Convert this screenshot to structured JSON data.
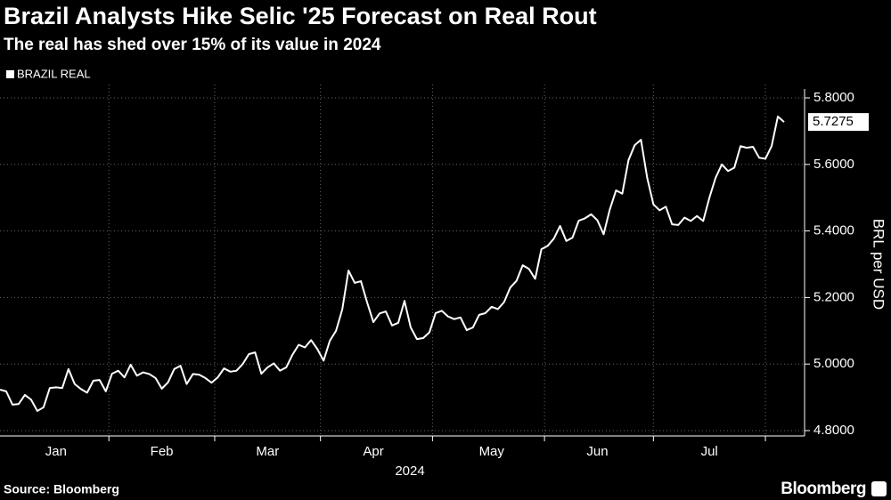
{
  "chart_data": {
    "type": "line",
    "title": "Brazil Analysts Hike Selic '25 Forecast on Real Rout",
    "subtitle": "The real has shed over 15% of its value in 2024",
    "y_label": "BRL per USD",
    "x_label": "2024",
    "source": "Source: Bloomberg",
    "brand": "Bloomberg",
    "last_label": "5.7275",
    "legend": "top-left",
    "grid": true,
    "categories": [
      null,
      null,
      null,
      null,
      null,
      null,
      null,
      null,
      null,
      "Jan",
      null,
      null,
      null,
      null,
      null,
      null,
      null,
      null,
      null,
      null,
      null,
      null,
      null,
      null,
      null,
      null,
      "Feb",
      null,
      null,
      null,
      null,
      null,
      null,
      null,
      null,
      null,
      null,
      null,
      null,
      null,
      null,
      null,
      null,
      "Mar",
      null,
      null,
      null,
      null,
      null,
      null,
      null,
      null,
      null,
      null,
      null,
      null,
      null,
      null,
      null,
      null,
      "Apr",
      null,
      null,
      null,
      null,
      null,
      null,
      null,
      null,
      null,
      null,
      null,
      null,
      null,
      null,
      null,
      null,
      null,
      null,
      "May",
      null,
      null,
      null,
      null,
      null,
      null,
      null,
      null,
      null,
      null,
      null,
      null,
      null,
      null,
      null,
      null,
      "Jun",
      null,
      null,
      null,
      null,
      null,
      null,
      null,
      null,
      null,
      null,
      null,
      null,
      null,
      null,
      null,
      null,
      null,
      "Jul",
      null,
      null,
      null,
      null,
      null,
      null,
      null,
      null,
      null,
      null,
      null,
      null
    ],
    "series": [
      {
        "name": "BRAZIL REAL",
        "color": "#ffffff",
        "values": [
          4.923,
          4.918,
          4.878,
          4.88,
          4.907,
          4.893,
          4.859,
          4.87,
          4.928,
          4.93,
          4.928,
          4.985,
          4.94,
          4.925,
          4.914,
          4.95,
          4.952,
          4.918,
          4.971,
          4.98,
          4.96,
          4.998,
          4.965,
          4.975,
          4.97,
          4.958,
          4.926,
          4.945,
          4.985,
          4.995,
          4.94,
          4.97,
          4.968,
          4.958,
          4.944,
          4.96,
          4.987,
          4.977,
          4.98,
          5.0,
          5.03,
          5.035,
          4.971,
          4.99,
          5.002,
          4.98,
          4.99,
          5.028,
          5.058,
          5.05,
          5.072,
          5.045,
          5.01,
          5.07,
          5.1,
          5.164,
          5.281,
          5.244,
          5.249,
          5.185,
          5.126,
          5.152,
          5.158,
          5.116,
          5.124,
          5.19,
          5.11,
          5.075,
          5.078,
          5.095,
          5.153,
          5.16,
          5.143,
          5.135,
          5.14,
          5.102,
          5.11,
          5.148,
          5.153,
          5.172,
          5.165,
          5.186,
          5.23,
          5.25,
          5.297,
          5.286,
          5.256,
          5.345,
          5.355,
          5.377,
          5.415,
          5.37,
          5.38,
          5.431,
          5.438,
          5.45,
          5.432,
          5.39,
          5.465,
          5.522,
          5.512,
          5.613,
          5.658,
          5.674,
          5.56,
          5.48,
          5.462,
          5.473,
          5.42,
          5.418,
          5.44,
          5.43,
          5.445,
          5.43,
          5.5,
          5.56,
          5.6,
          5.58,
          5.59,
          5.655,
          5.65,
          5.653,
          5.62,
          5.617,
          5.655,
          5.744,
          5.7275
        ]
      }
    ],
    "ylim": [
      4.8,
      5.8
    ],
    "yticks": [
      {
        "value": 4.8,
        "label": "4.8000"
      },
      {
        "value": 5.0,
        "label": "5.0000"
      },
      {
        "value": 5.2,
        "label": "5.2000"
      },
      {
        "value": 5.4,
        "label": "5.4000"
      },
      {
        "value": 5.6,
        "label": "5.6000"
      },
      {
        "value": 5.8,
        "label": "5.8000"
      }
    ]
  }
}
